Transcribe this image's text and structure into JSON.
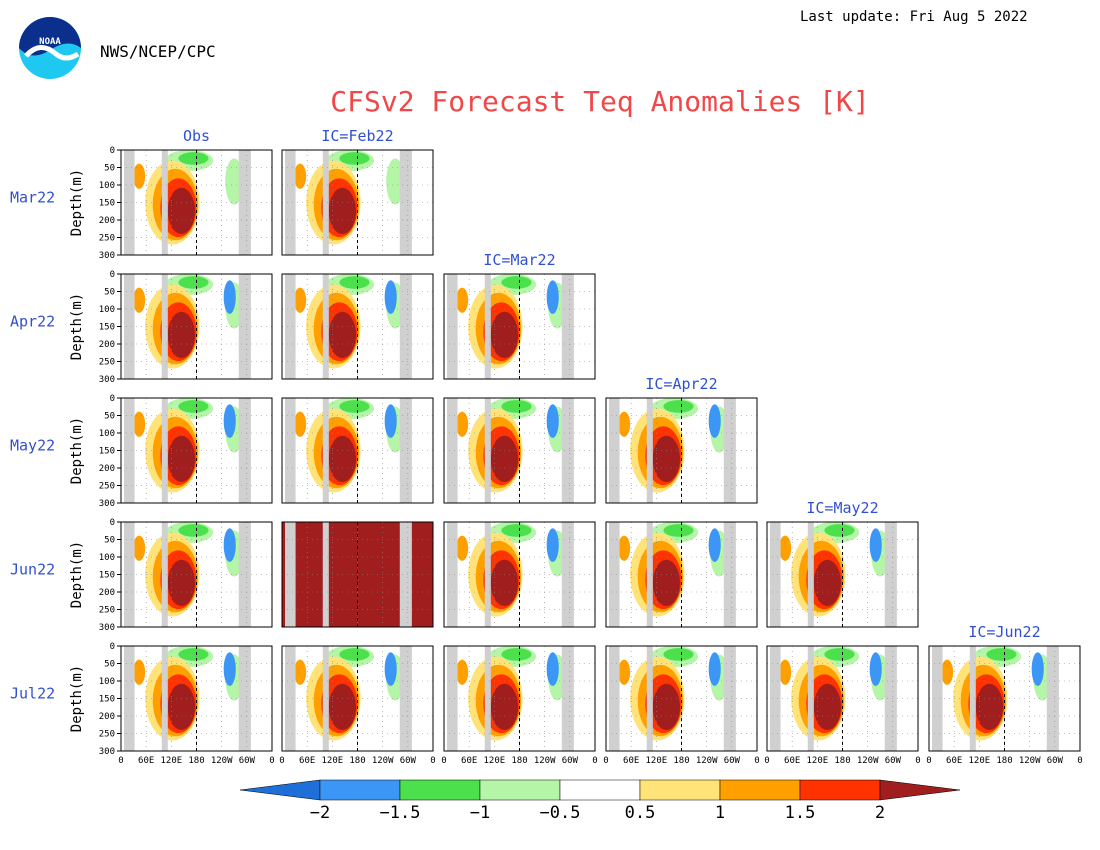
{
  "header": {
    "last_update": "Last update: Fri Aug 5 2022",
    "agency": "NWS/NCEP/CPC",
    "logo_text": "NOAA"
  },
  "chart_data": {
    "type": "heatmap",
    "title": "CFSv2 Forecast Teq Anomalies [K]",
    "ylabel": "Depth(m)",
    "y_ticks": [
      "0",
      "50",
      "100",
      "150",
      "200",
      "250",
      "300"
    ],
    "x_ticks": [
      "0",
      "60E",
      "120E",
      "180",
      "120W",
      "60W",
      "0"
    ],
    "ylim": [
      0,
      300
    ],
    "rows": [
      "Mar22",
      "Apr22",
      "May22",
      "Jun22",
      "Jul22"
    ],
    "columns": [
      "Obs",
      "IC=Feb22",
      "IC=Mar22",
      "IC=Apr22",
      "IC=May22",
      "IC=Jun22"
    ],
    "colorbar": {
      "tick_labels": [
        "−2",
        "−1.5",
        "−1",
        "−0.5",
        "0.5",
        "1",
        "1.5",
        "2"
      ],
      "bins": [
        {
          "range": "< -2",
          "color": "#1f6fd8"
        },
        {
          "range": "-2 to -1.5",
          "color": "#3c96f5"
        },
        {
          "range": "-1.5 to -1",
          "color": "#4ce04c"
        },
        {
          "range": "-1 to -0.5",
          "color": "#b4f5a8"
        },
        {
          "range": "-0.5 to 0.5",
          "color": "#ffffff"
        },
        {
          "range": "0.5 to 1",
          "color": "#ffe278"
        },
        {
          "range": "1 to 1.5",
          "color": "#ffa000"
        },
        {
          "range": "1.5 to 2",
          "color": "#ff3200"
        },
        {
          "range": "> 2",
          "color": "#a01e1e"
        }
      ]
    },
    "panels": [
      {
        "row": 0,
        "col": 0
      },
      {
        "row": 0,
        "col": 1
      },
      {
        "row": 1,
        "col": 0
      },
      {
        "row": 1,
        "col": 1
      },
      {
        "row": 1,
        "col": 2
      },
      {
        "row": 2,
        "col": 0
      },
      {
        "row": 2,
        "col": 1
      },
      {
        "row": 2,
        "col": 2
      },
      {
        "row": 2,
        "col": 3
      },
      {
        "row": 3,
        "col": 0
      },
      {
        "row": 3,
        "col": 1,
        "fill": "#a01e1e"
      },
      {
        "row": 3,
        "col": 2
      },
      {
        "row": 3,
        "col": 3
      },
      {
        "row": 3,
        "col": 4
      },
      {
        "row": 4,
        "col": 0
      },
      {
        "row": 4,
        "col": 1
      },
      {
        "row": 4,
        "col": 2
      },
      {
        "row": 4,
        "col": 3
      },
      {
        "row": 4,
        "col": 4
      },
      {
        "row": 4,
        "col": 5
      }
    ],
    "land_color": "#d0d0d0"
  }
}
